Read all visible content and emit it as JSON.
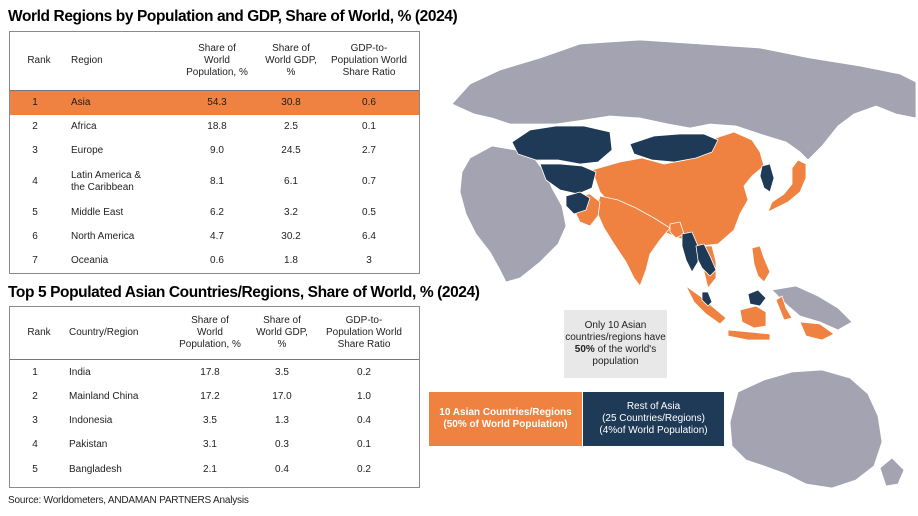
{
  "table1": {
    "title": "World Regions by Population and GDP, Share of World, % (2024)",
    "headers": {
      "rank": "Rank",
      "name": "Region",
      "pop": [
        "Share of",
        "World",
        "Population, %"
      ],
      "gdp": [
        "Share of",
        "World GDP,",
        "%"
      ],
      "ratio": [
        "GDP-to-",
        "Population World",
        "Share Ratio"
      ]
    },
    "rows": [
      {
        "rank": "1",
        "name": "Asia",
        "pop": "54.3",
        "gdp": "30.8",
        "ratio": "0.6",
        "highlight": true
      },
      {
        "rank": "2",
        "name": "Africa",
        "pop": "18.8",
        "gdp": "2.5",
        "ratio": "0.1"
      },
      {
        "rank": "3",
        "name": "Europe",
        "pop": "9.0",
        "gdp": "24.5",
        "ratio": "2.7"
      },
      {
        "rank": "4",
        "name": "Latin America & the Caribbean",
        "name_lines": [
          "Latin America &",
          "the Caribbean"
        ],
        "pop": "8.1",
        "gdp": "6.1",
        "ratio": "0.7"
      },
      {
        "rank": "5",
        "name": "Middle East",
        "pop": "6.2",
        "gdp": "3.2",
        "ratio": "0.5"
      },
      {
        "rank": "6",
        "name": "North America",
        "pop": "4.7",
        "gdp": "30.2",
        "ratio": "6.4"
      },
      {
        "rank": "7",
        "name": "Oceania",
        "pop": "0.6",
        "gdp": "1.8",
        "ratio": "3"
      }
    ]
  },
  "table2": {
    "title": "Top 5 Populated Asian Countries/Regions, Share of World, % (2024)",
    "headers": {
      "rank": "Rank",
      "name": "Country/Region",
      "pop": [
        "Share of",
        "World",
        "Population, %"
      ],
      "gdp": [
        "Share of",
        "World GDP,",
        "%"
      ],
      "ratio": [
        "GDP-to-",
        "Population World",
        "Share Ratio"
      ]
    },
    "rows": [
      {
        "rank": "1",
        "name": "India",
        "pop": "17.8",
        "gdp": "3.5",
        "ratio": "0.2"
      },
      {
        "rank": "2",
        "name": "Mainland China",
        "pop": "17.2",
        "gdp": "17.0",
        "ratio": "1.0"
      },
      {
        "rank": "3",
        "name": "Indonesia",
        "pop": "3.5",
        "gdp": "1.3",
        "ratio": "0.4"
      },
      {
        "rank": "4",
        "name": "Pakistan",
        "pop": "3.1",
        "gdp": "0.3",
        "ratio": "0.1"
      },
      {
        "rank": "5",
        "name": "Bangladesh",
        "pop": "2.1",
        "gdp": "0.4",
        "ratio": "0.2"
      }
    ]
  },
  "callout": {
    "pre": "Only 10 Asian countries/regions have ",
    "bold": "50%",
    "post": " of the world's population"
  },
  "legend": {
    "asia": [
      "10 Asian Countries/Regions",
      "(50% of World Population)"
    ],
    "rest": [
      "Rest of Asia",
      "(25 Countries/Regions)",
      "(4%of World Population)"
    ]
  },
  "source": "Source: Worldometers, ANDAMAN PARTNERS Analysis",
  "colors": {
    "top10": "#ef8240",
    "rest_of_asia": "#1e3a56",
    "other_land": "#a3a3b2",
    "highlight_row": "#ef8240",
    "callout_bg": "#e8e8e8"
  },
  "chart_data": [
    {
      "type": "table",
      "title": "World Regions by Population and GDP, Share of World, % (2024)",
      "columns": [
        "Rank",
        "Region",
        "Share of World Population, %",
        "Share of World GDP, %",
        "GDP-to-Population World Share Ratio"
      ],
      "rows": [
        [
          1,
          "Asia",
          54.3,
          30.8,
          0.6
        ],
        [
          2,
          "Africa",
          18.8,
          2.5,
          0.1
        ],
        [
          3,
          "Europe",
          9.0,
          24.5,
          2.7
        ],
        [
          4,
          "Latin America & the Caribbean",
          8.1,
          6.1,
          0.7
        ],
        [
          5,
          "Middle East",
          6.2,
          3.2,
          0.5
        ],
        [
          6,
          "North America",
          4.7,
          30.2,
          6.4
        ],
        [
          7,
          "Oceania",
          0.6,
          1.8,
          3
        ]
      ]
    },
    {
      "type": "table",
      "title": "Top 5 Populated Asian Countries/Regions, Share of World, % (2024)",
      "columns": [
        "Rank",
        "Country/Region",
        "Share of World Population, %",
        "Share of World GDP, %",
        "GDP-to-Population World Share Ratio"
      ],
      "rows": [
        [
          1,
          "India",
          17.8,
          3.5,
          0.2
        ],
        [
          2,
          "Mainland China",
          17.2,
          17.0,
          1.0
        ],
        [
          3,
          "Indonesia",
          3.5,
          1.3,
          0.4
        ],
        [
          4,
          "Pakistan",
          3.1,
          0.3,
          0.1
        ],
        [
          5,
          "Bangladesh",
          2.1,
          0.4,
          0.2
        ]
      ]
    }
  ]
}
